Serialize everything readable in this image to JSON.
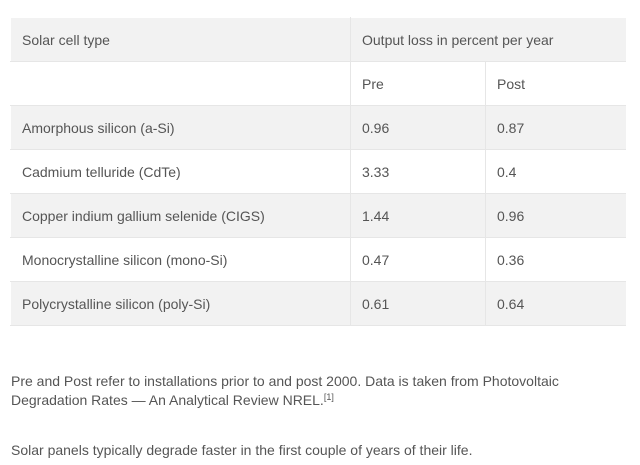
{
  "table": {
    "header": [
      "Solar cell type",
      "Output loss in percent per year"
    ],
    "subheader": [
      "Pre",
      "Post"
    ],
    "rows": [
      [
        "Amorphous silicon (a-Si)",
        "0.96",
        "0.87"
      ],
      [
        "Cadmium telluride (CdTe)",
        "3.33",
        "0.4"
      ],
      [
        "Copper indium gallium selenide (CIGS)",
        "1.44",
        "0.96"
      ],
      [
        "Monocrystalline silicon (mono-Si)",
        "0.47",
        "0.36"
      ],
      [
        "Polycrystalline silicon (poly-Si)",
        "0.61",
        "0.64"
      ]
    ]
  },
  "notes": {
    "paragraph_1": "Pre and Post refer to installations prior to and post 2000. Data is taken from Photovoltaic Degradation Rates — An Analytical Review NREL.",
    "footnote": "[1]",
    "paragraph_2": "Solar panels typically degrade faster in the first couple of years of their life."
  }
}
